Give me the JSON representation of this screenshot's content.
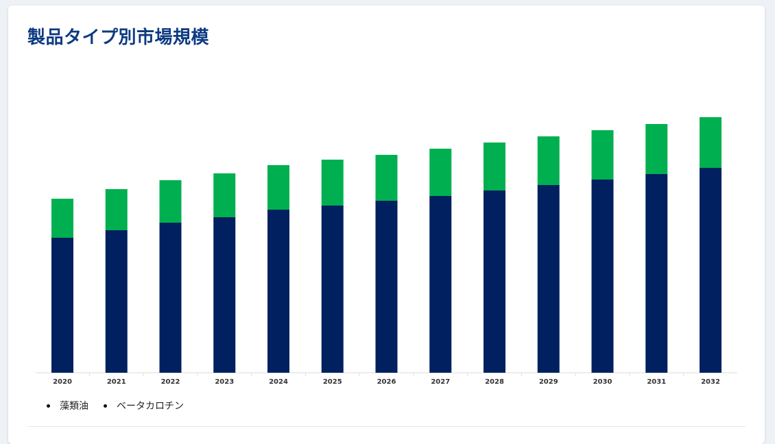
{
  "title": "製品タイプ別市場規模",
  "chart_data": {
    "type": "bar",
    "stacked": true,
    "categories": [
      "2020",
      "2021",
      "2022",
      "2023",
      "2024",
      "2025",
      "2026",
      "2027",
      "2028",
      "2029",
      "2030",
      "2031",
      "2032"
    ],
    "series": [
      {
        "name": "藻類油",
        "color": "#00205f",
        "values": [
          197,
          208,
          219,
          227,
          238,
          244,
          251,
          258,
          266,
          274,
          282,
          290,
          299
        ]
      },
      {
        "name": "ベータカロチン",
        "color": "#00b050",
        "values": [
          57,
          60,
          62,
          64,
          65,
          67,
          67,
          69,
          70,
          71,
          72,
          73,
          74
        ]
      }
    ],
    "legend_position": "bottom-left",
    "grid": false,
    "ylim": [
      0,
      400
    ]
  }
}
